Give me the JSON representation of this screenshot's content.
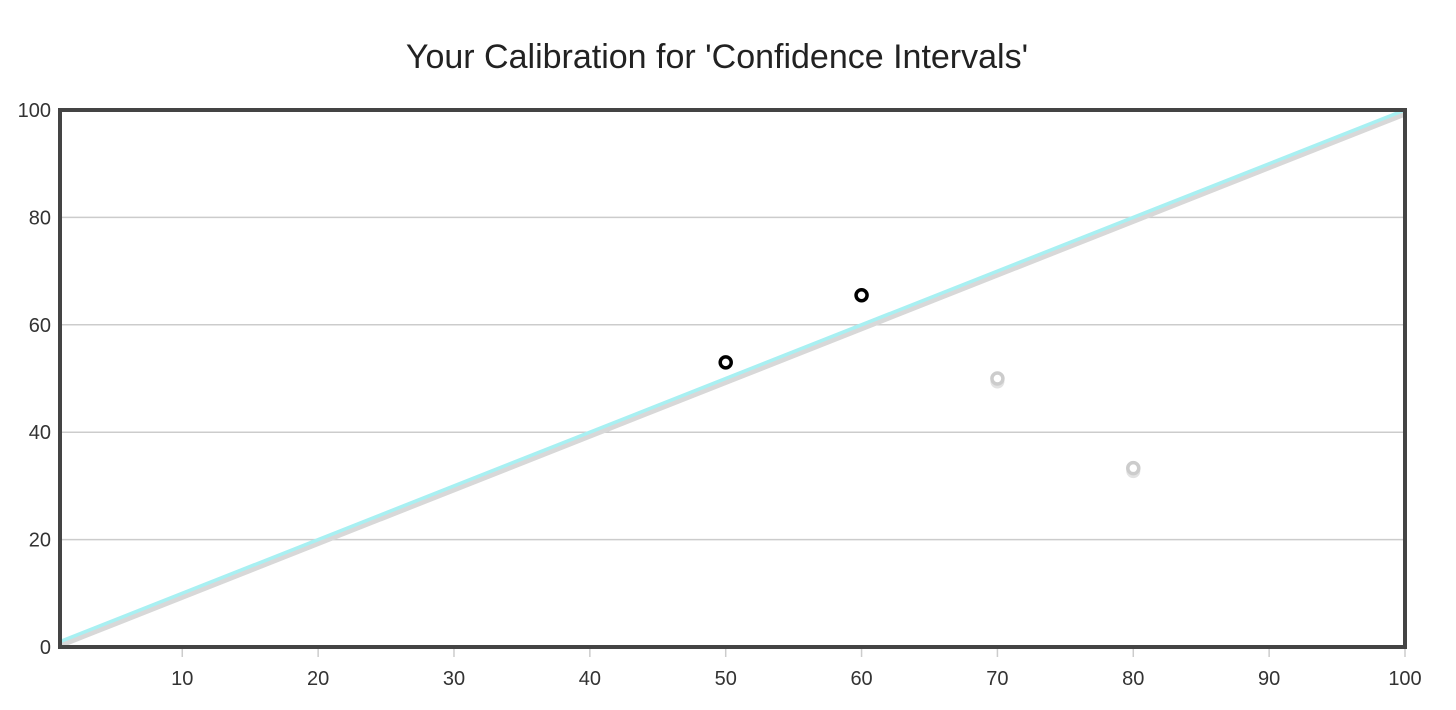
{
  "chart_data": {
    "type": "scatter",
    "title": "Your Calibration for 'Confidence Intervals'",
    "xlabel": "",
    "ylabel": "",
    "xlim": [
      1,
      100
    ],
    "ylim": [
      0,
      100
    ],
    "x_ticks": [
      10,
      20,
      30,
      40,
      50,
      60,
      70,
      80,
      90,
      100
    ],
    "y_ticks": [
      0,
      20,
      40,
      60,
      80,
      100
    ],
    "grid": "horizontal",
    "reference_line": {
      "points": [
        [
          1,
          1
        ],
        [
          100,
          100
        ]
      ],
      "color": "#a8f0f2",
      "shadow_color": "#d8d8d8"
    },
    "series": [
      {
        "points": [
          {
            "x": 50,
            "y": 53
          },
          {
            "x": 60,
            "y": 65.5
          }
        ],
        "color": "#000000"
      },
      {
        "points": [
          {
            "x": 70,
            "y": 50
          },
          {
            "x": 80,
            "y": 33.3
          }
        ],
        "color": "#cccccc"
      }
    ]
  },
  "colors": {
    "frame": "#444444",
    "grid": "#cccccc",
    "text": "#333333"
  }
}
